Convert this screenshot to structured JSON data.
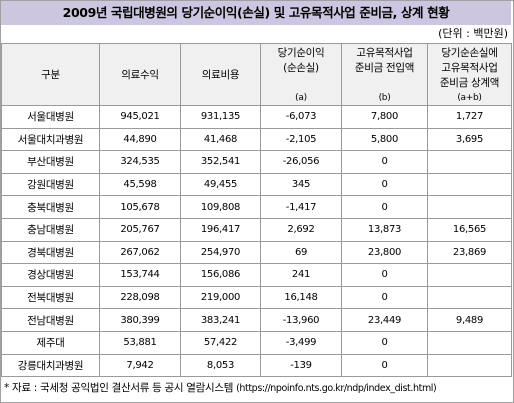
{
  "title": "2009년 국립대병원의 당기순이익(손실) 및 고유목적사업 준비금, 상계 현황",
  "unit": "(단위 : 백만원)",
  "headers": {
    "col1": "구분",
    "col2": "의료수익",
    "col3": "의료비용",
    "col4": [
      "당기순이익",
      "(순손실)"
    ],
    "col4_note": "(a)",
    "col5": [
      "고유목적사업",
      "준비금 전입액"
    ],
    "col5_note": "(b)",
    "col6": [
      "당기순손실에",
      "고유목적사업",
      "준비금 상계액"
    ],
    "col6_note": "(a+b)"
  },
  "rows": [
    {
      "name": "서울대병원",
      "revenue": "945,021",
      "cost": "931,135",
      "net": "-6,073",
      "reserve": "7,800",
      "offset": "1,727"
    },
    {
      "name": "서울대치과병원",
      "revenue": "44,890",
      "cost": "41,468",
      "net": "-2,105",
      "reserve": "5,800",
      "offset": "3,695"
    },
    {
      "name": "부산대병원",
      "revenue": "324,535",
      "cost": "352,541",
      "net": "-26,056",
      "reserve": "0",
      "offset": ""
    },
    {
      "name": "강원대병원",
      "revenue": "45,598",
      "cost": "49,455",
      "net": "345",
      "reserve": "0",
      "offset": ""
    },
    {
      "name": "충북대병원",
      "revenue": "105,678",
      "cost": "109,808",
      "net": "-1,417",
      "reserve": "0",
      "offset": ""
    },
    {
      "name": "충남대병원",
      "revenue": "205,767",
      "cost": "196,417",
      "net": "2,692",
      "reserve": "13,873",
      "offset": "16,565"
    },
    {
      "name": "경북대병원",
      "revenue": "267,062",
      "cost": "254,970",
      "net": "69",
      "reserve": "23,800",
      "offset": "23,869"
    },
    {
      "name": "경상대병원",
      "revenue": "153,744",
      "cost": "156,086",
      "net": "241",
      "reserve": "0",
      "offset": ""
    },
    {
      "name": "전북대병원",
      "revenue": "228,098",
      "cost": "219,000",
      "net": "16,148",
      "reserve": "0",
      "offset": ""
    },
    {
      "name": "전남대병원",
      "revenue": "380,399",
      "cost": "383,241",
      "net": "-13,960",
      "reserve": "23,449",
      "offset": "9,489"
    },
    {
      "name": "제주대",
      "revenue": "53,881",
      "cost": "57,422",
      "net": "-3,499",
      "reserve": "0",
      "offset": ""
    },
    {
      "name": "강릉대치과병원",
      "revenue": "7,942",
      "cost": "8,053",
      "net": "-139",
      "reserve": "0",
      "offset": ""
    }
  ],
  "source": {
    "label": "* 자료 : 국세청 공익법인 결산서류 등 공시 열람시스템",
    "url": "(https://npoinfo.nts.go.kr/ndp/index_dist.html)"
  }
}
